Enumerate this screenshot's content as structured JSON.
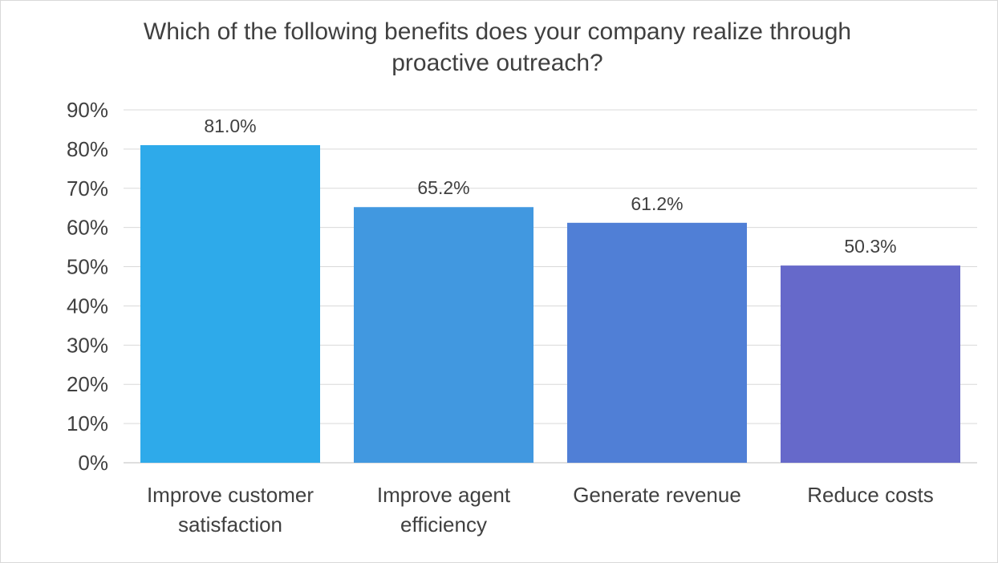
{
  "chart_data": {
    "type": "bar",
    "title": "Which of the following benefits does your company realize through proactive outreach?",
    "categories": [
      [
        "Improve customer",
        "satisfaction"
      ],
      [
        "Improve agent",
        "efficiency"
      ],
      [
        "Generate revenue"
      ],
      [
        "Reduce costs"
      ]
    ],
    "values": [
      81.0,
      65.2,
      61.2,
      50.3
    ],
    "value_labels": [
      "81.0%",
      "65.2%",
      "61.2%",
      "50.3%"
    ],
    "bar_colors": [
      "#2eaaea",
      "#4198e0",
      "#507fd6",
      "#6669ca"
    ],
    "ylim": [
      0,
      90
    ],
    "yticks": [
      0,
      10,
      20,
      30,
      40,
      50,
      60,
      70,
      80,
      90
    ],
    "ytick_labels": [
      "0%",
      "10%",
      "20%",
      "30%",
      "40%",
      "50%",
      "60%",
      "70%",
      "80%",
      "90%"
    ],
    "grid": true,
    "legend": "none",
    "xlabel": "",
    "ylabel": ""
  }
}
